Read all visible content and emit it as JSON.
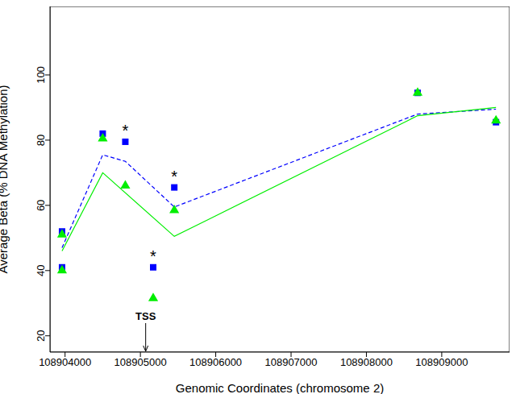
{
  "chart_data": {
    "type": "scatter",
    "x_label": "Genomic Coordinates (chromosome 2)",
    "y_label": "Average Beta (% DNA Methylation)",
    "xlim": [
      108903800,
      108909900
    ],
    "xticks": [
      108904000,
      108905000,
      108906000,
      108907000,
      108908000,
      108909000
    ],
    "ylim": [
      15,
      121
    ],
    "yticks": [
      20,
      40,
      60,
      80,
      100
    ],
    "grid": false,
    "series": [
      {
        "type": "scatter",
        "color": "#0000ff",
        "marker": "square",
        "x": [
          108903960,
          108903960,
          108904500,
          108904800,
          108905170,
          108905450,
          108908680,
          108909720
        ],
        "values": [
          52,
          41,
          82,
          79.5,
          41,
          65.5,
          94.5,
          85.5
        ]
      },
      {
        "type": "scatter",
        "color": "#00ee00",
        "marker": "triangle",
        "x": [
          108903960,
          108903960,
          108904500,
          108904800,
          108905170,
          108905450,
          108908680,
          108909720
        ],
        "values": [
          51,
          40,
          80.5,
          66,
          31.5,
          58.5,
          94.5,
          86
        ]
      },
      {
        "type": "line",
        "color": "#0000ff",
        "line_style": "dashed",
        "x": [
          108903960,
          108904500,
          108904800,
          108905450,
          108908680,
          108909720
        ],
        "values": [
          47,
          75.5,
          73.5,
          59.5,
          88,
          89.5
        ]
      },
      {
        "type": "line",
        "color": "#00ee00",
        "line_style": "solid",
        "x": [
          108903960,
          108904500,
          108905450,
          108908680,
          108909720
        ],
        "values": [
          46,
          70,
          50.5,
          87.5,
          90
        ]
      }
    ],
    "annotations": [
      {
        "text": "*",
        "x": 108904800,
        "y": 79.5
      },
      {
        "text": "*",
        "x": 108905170,
        "y": 41
      },
      {
        "text": "*",
        "x": 108905450,
        "y": 65.5
      }
    ],
    "arrow_annotations": [
      {
        "text": "TSS",
        "x": 108905070
      }
    ]
  }
}
